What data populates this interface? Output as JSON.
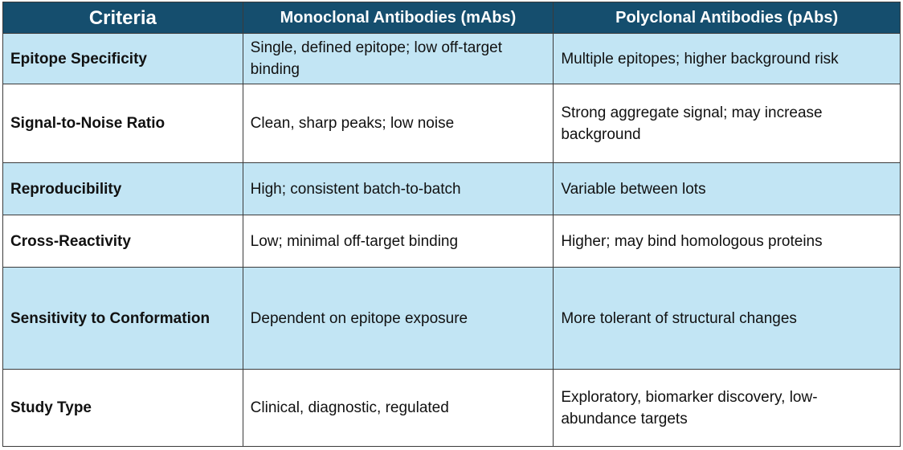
{
  "headers": {
    "criteria": "Criteria",
    "mabs": "Monoclonal Antibodies (mAbs)",
    "pabs": "Polyclonal Antibodies (pAbs)"
  },
  "rows": [
    {
      "criteria": "Epitope Specificity",
      "mabs": "Single, defined epitope; low off-target binding",
      "pabs": "Multiple epitopes; higher background risk"
    },
    {
      "criteria": "Signal-to-Noise Ratio",
      "mabs": "Clean, sharp peaks; low noise",
      "pabs": "Strong aggregate signal; may increase background"
    },
    {
      "criteria": "Reproducibility",
      "mabs": "High; consistent batch-to-batch",
      "pabs": "Variable between lots"
    },
    {
      "criteria": "Cross-Reactivity",
      "mabs": "Low; minimal off-target binding",
      "pabs": "Higher; may bind homologous proteins"
    },
    {
      "criteria": "Sensitivity to Conformation",
      "mabs": "Dependent on epitope exposure",
      "pabs": "More tolerant of structural changes"
    },
    {
      "criteria": "Study Type",
      "mabs": "Clinical, diagnostic, regulated",
      "pabs": "Exploratory, biomarker discovery, low-abundance targets"
    }
  ],
  "colors": {
    "header_bg": "#154e6e",
    "shaded_row_bg": "#c2e5f4",
    "plain_row_bg": "#ffffff"
  }
}
